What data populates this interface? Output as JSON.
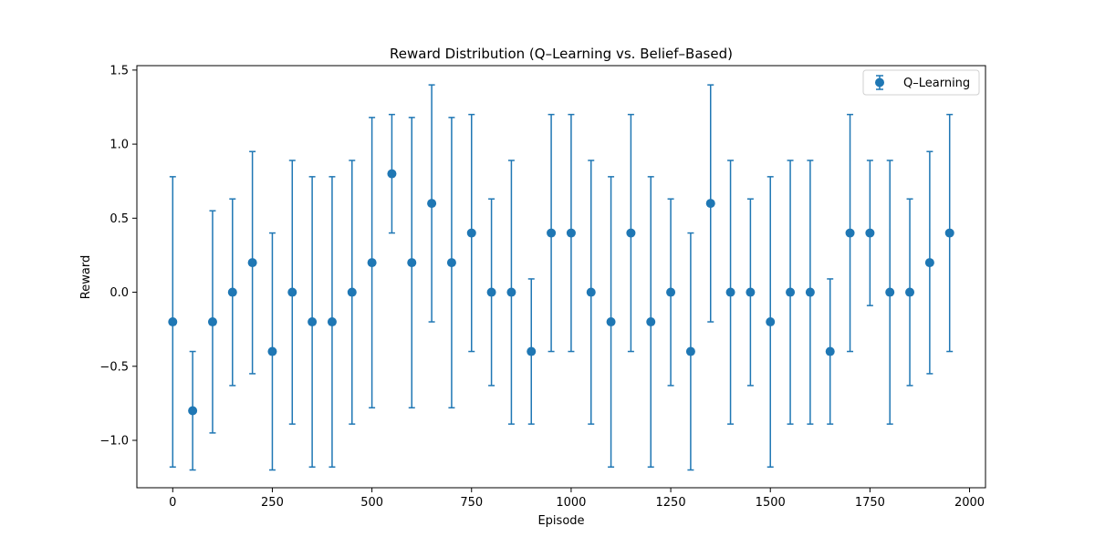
{
  "chart_data": {
    "type": "scatter",
    "title": "Reward Distribution (Q–Learning vs. Belief–Based)",
    "xlabel": "Episode",
    "ylabel": "Reward",
    "xlim": [
      -90,
      2040
    ],
    "ylim": [
      -1.32,
      1.53
    ],
    "xticks": [
      0,
      250,
      500,
      750,
      1000,
      1250,
      1500,
      1750,
      2000
    ],
    "yticks": [
      -1.0,
      -0.5,
      0.0,
      0.5,
      1.0,
      1.5
    ],
    "grid": false,
    "legend_position": "top-right",
    "series": [
      {
        "name": "Q–Learning",
        "color": "#1f77b4",
        "marker": "circle",
        "error_bars": true,
        "x": [
          0,
          50,
          100,
          150,
          200,
          250,
          300,
          350,
          400,
          450,
          500,
          550,
          600,
          650,
          700,
          750,
          800,
          850,
          900,
          950,
          1000,
          1050,
          1100,
          1150,
          1200,
          1250,
          1300,
          1350,
          1400,
          1450,
          1500,
          1550,
          1600,
          1650,
          1700,
          1750,
          1800,
          1850,
          1900,
          1950
        ],
        "y": [
          -0.2,
          -0.8,
          -0.2,
          0.0,
          0.2,
          -0.4,
          0.0,
          -0.2,
          -0.2,
          0.0,
          0.2,
          0.8,
          0.2,
          0.6,
          0.2,
          0.4,
          0.0,
          0.0,
          -0.4,
          0.4,
          0.4,
          0.0,
          -0.2,
          0.4,
          -0.2,
          0.0,
          -0.4,
          0.6,
          0.0,
          0.0,
          -0.2,
          0.0,
          0.0,
          -0.4,
          0.4,
          0.4,
          0.0,
          0.0,
          0.2,
          0.4
        ],
        "err": [
          0.98,
          0.4,
          0.75,
          0.63,
          0.75,
          0.8,
          0.89,
          0.98,
          0.98,
          0.89,
          0.98,
          0.4,
          0.98,
          0.8,
          0.98,
          0.8,
          0.63,
          0.89,
          0.49,
          0.8,
          0.8,
          0.89,
          0.98,
          0.8,
          0.98,
          0.63,
          0.8,
          0.8,
          0.89,
          0.63,
          0.98,
          0.89,
          0.89,
          0.49,
          0.8,
          0.49,
          0.89,
          0.63,
          0.75,
          0.8
        ]
      }
    ]
  }
}
